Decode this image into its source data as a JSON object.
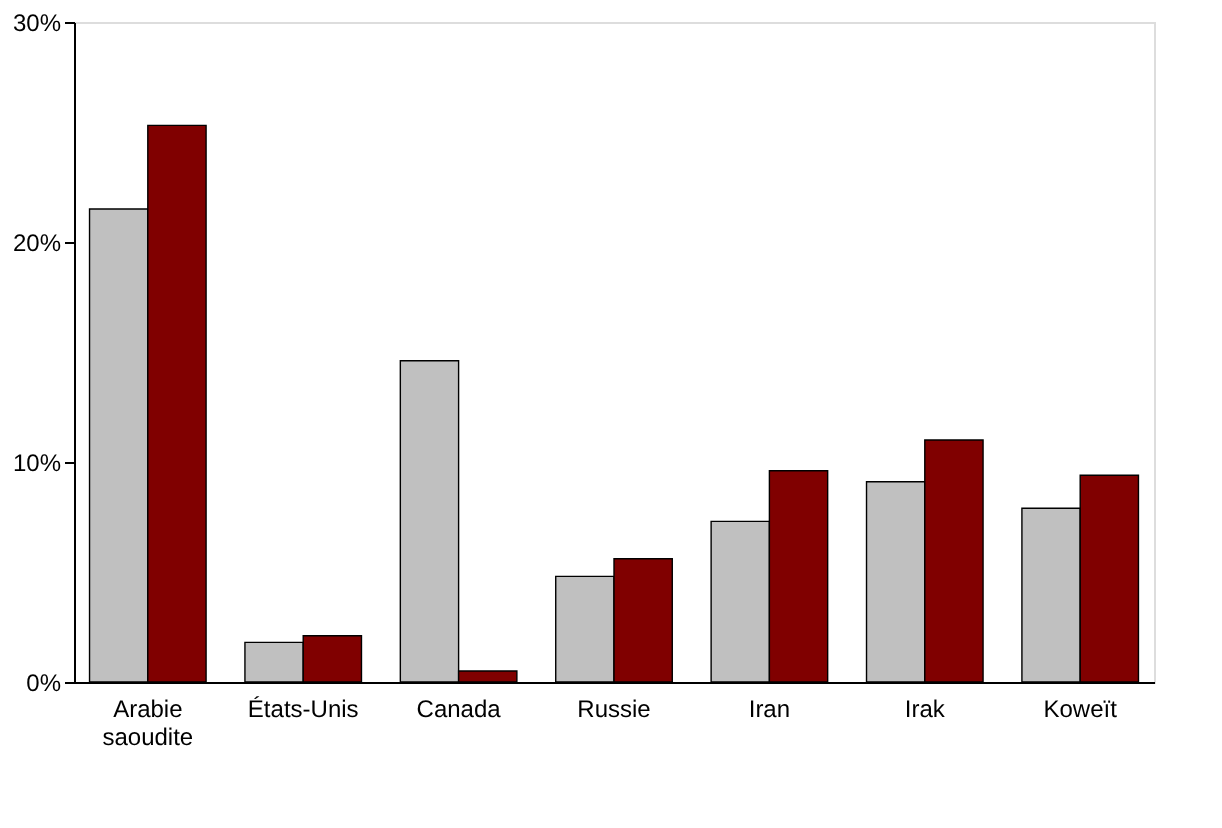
{
  "chart_data": {
    "type": "bar",
    "categories": [
      "Arabie saoudite",
      "États-Unis",
      "Canada",
      "Russie",
      "Iran",
      "Irak",
      "Koweït"
    ],
    "series": [
      {
        "color": "#c0c0c0",
        "values": [
          21.5,
          1.8,
          14.6,
          4.8,
          7.3,
          9.1,
          7.9
        ]
      },
      {
        "color": "#800000",
        "values": [
          25.3,
          2.1,
          0.5,
          5.6,
          9.6,
          11.0,
          9.4
        ]
      }
    ],
    "ylim": [
      0,
      30
    ],
    "yticks": [
      {
        "value": 0,
        "label": "0%"
      },
      {
        "value": 10,
        "label": "10%"
      },
      {
        "value": 20,
        "label": "20%"
      },
      {
        "value": 30,
        "label": "30%"
      }
    ],
    "grid": false,
    "legend": false
  }
}
